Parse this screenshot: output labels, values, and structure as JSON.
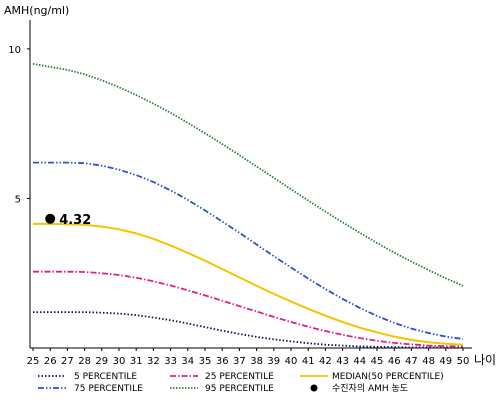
{
  "chart_data": {
    "type": "line",
    "ylabel": "AMH(ng/ml)",
    "xlabel": "나이",
    "ylim": [
      0,
      11
    ],
    "yticks": [
      5,
      10
    ],
    "x": [
      25,
      26,
      27,
      28,
      29,
      30,
      31,
      32,
      33,
      34,
      35,
      36,
      37,
      38,
      39,
      40,
      41,
      42,
      43,
      44,
      45,
      46,
      47,
      48,
      49,
      50
    ],
    "series": [
      {
        "name": "5 PERCENTILE",
        "color": "#101060",
        "dash": "dotted",
        "values": [
          1.2,
          1.2,
          1.2,
          1.2,
          1.18,
          1.15,
          1.1,
          1.02,
          0.93,
          0.82,
          0.7,
          0.58,
          0.47,
          0.37,
          0.29,
          0.22,
          0.16,
          0.11,
          0.08,
          0.05,
          0.04,
          0.03,
          0.02,
          0.02,
          0.01,
          0.01
        ]
      },
      {
        "name": "25 PERCENTILE",
        "color": "#e0208a",
        "dash": "dashdot",
        "values": [
          2.55,
          2.55,
          2.55,
          2.54,
          2.5,
          2.44,
          2.35,
          2.23,
          2.09,
          1.93,
          1.76,
          1.58,
          1.4,
          1.22,
          1.04,
          0.87,
          0.71,
          0.57,
          0.44,
          0.33,
          0.24,
          0.17,
          0.12,
          0.08,
          0.06,
          0.05
        ]
      },
      {
        "name": "MEDIAN(50 PERCENTILE)",
        "color": "#f5c400",
        "dash": "solid",
        "values": [
          4.15,
          4.15,
          4.14,
          4.12,
          4.06,
          3.97,
          3.83,
          3.65,
          3.43,
          3.18,
          2.92,
          2.64,
          2.36,
          2.08,
          1.81,
          1.55,
          1.31,
          1.08,
          0.87,
          0.68,
          0.52,
          0.38,
          0.27,
          0.19,
          0.14,
          0.11
        ]
      },
      {
        "name": "75 PERCENTILE",
        "color": "#3050c8",
        "dash": "dashdotdot",
        "values": [
          6.2,
          6.2,
          6.2,
          6.18,
          6.1,
          5.96,
          5.78,
          5.55,
          5.27,
          4.95,
          4.6,
          4.23,
          3.85,
          3.46,
          3.07,
          2.69,
          2.32,
          1.97,
          1.64,
          1.34,
          1.07,
          0.84,
          0.65,
          0.5,
          0.38,
          0.3
        ]
      },
      {
        "name": "95 PERCENTILE",
        "color": "#2a7a3c",
        "dash": "dense-dotted",
        "values": [
          9.5,
          9.4,
          9.3,
          9.15,
          8.95,
          8.72,
          8.46,
          8.17,
          7.86,
          7.53,
          7.18,
          6.82,
          6.45,
          6.07,
          5.69,
          5.31,
          4.93,
          4.56,
          4.2,
          3.85,
          3.51,
          3.19,
          2.89,
          2.6,
          2.33,
          2.08
        ]
      }
    ],
    "marker": {
      "label": "수진자의 AMH 농도",
      "x": 26,
      "y": 4.32,
      "text": "4.32",
      "color": "#000000"
    },
    "legend_order": [
      "5 PERCENTILE",
      "25 PERCENTILE",
      "MEDIAN(50 PERCENTILE)",
      "75 PERCENTILE",
      "95 PERCENTILE",
      "수진자의 AMH 농도"
    ],
    "legend_position": "bottom",
    "grid": false
  }
}
